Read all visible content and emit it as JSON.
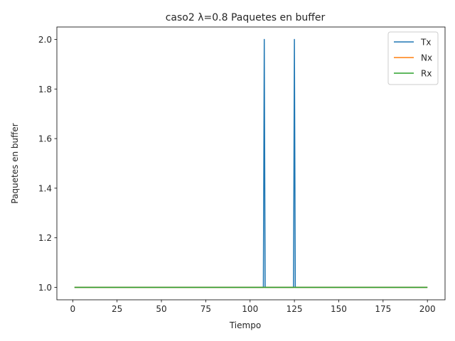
{
  "chart_data": {
    "type": "line",
    "title": "caso2 λ=0.8 Paquetes en buffer",
    "xlabel": "Tiempo",
    "ylabel": "Paquetes en buffer",
    "xlim": [
      -8.95,
      209.95
    ],
    "ylim": [
      0.95,
      2.05
    ],
    "xticks": [
      0,
      25,
      50,
      75,
      100,
      125,
      150,
      175,
      200
    ],
    "yticks": [
      1.0,
      1.2,
      1.4,
      1.6,
      1.8,
      2.0
    ],
    "ytick_labels": [
      "1.0",
      "1.2",
      "1.4",
      "1.6",
      "1.8",
      "2.0"
    ],
    "grid": false,
    "legend_position": "top-right",
    "series": [
      {
        "name": "Tx",
        "color": "#1f77b4",
        "x": [
          1,
          107.5,
          108,
          108.5,
          124.5,
          125,
          125.5,
          200
        ],
        "y": [
          1,
          1,
          2,
          1,
          1,
          2,
          1,
          1
        ]
      },
      {
        "name": "Nx",
        "color": "#ff7f0e",
        "x": [
          1,
          200
        ],
        "y": [
          1,
          1
        ]
      },
      {
        "name": "Rx",
        "color": "#2ca02c",
        "x": [
          1,
          200
        ],
        "y": [
          1,
          1
        ]
      }
    ]
  }
}
